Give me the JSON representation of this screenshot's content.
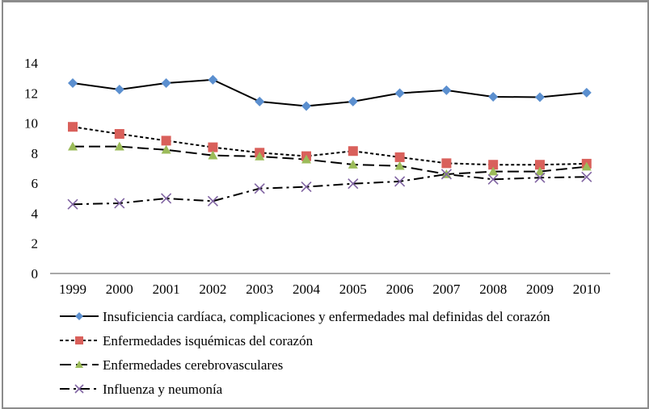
{
  "chart_data": {
    "type": "line",
    "title": "",
    "xlabel": "",
    "ylabel": "",
    "ylim": [
      0,
      14
    ],
    "yticks": [
      "0",
      "2",
      "4",
      "6",
      "8",
      "10",
      "12",
      "14"
    ],
    "grid": false,
    "legend_position": "bottom",
    "x": [
      "1999",
      "2000",
      "2001",
      "2002",
      "2003",
      "2004",
      "2005",
      "2006",
      "2007",
      "2008",
      "2009",
      "2010"
    ],
    "series": [
      {
        "name": "Insuficiencia cardíaca, complicaciones y enfermedades mal definidas del corazón",
        "color": "#5b8fcf",
        "marker": "diamond",
        "line_style": "solid",
        "values": [
          12.66,
          12.23,
          12.66,
          12.88,
          11.43,
          11.13,
          11.43,
          11.99,
          12.18,
          11.75,
          11.72,
          12.02
        ]
      },
      {
        "name": "Enfermedades isquémicas del corazón",
        "color": "#d9605b",
        "marker": "square",
        "line_style": "short-dash",
        "values": [
          9.75,
          9.28,
          8.83,
          8.39,
          8.03,
          7.8,
          8.14,
          7.73,
          7.33,
          7.23,
          7.23,
          7.3
        ]
      },
      {
        "name": "Enfermedades cerebrovasculares",
        "color": "#9bbb59",
        "marker": "triangle",
        "line_style": "long-dash",
        "values": [
          8.44,
          8.44,
          8.22,
          7.85,
          7.78,
          7.58,
          7.24,
          7.15,
          6.6,
          6.78,
          6.78,
          7.1
        ]
      },
      {
        "name": "Influenza y neumonía",
        "color": "#8064a2",
        "marker": "x",
        "line_style": "dash-dot",
        "values": [
          4.6,
          4.67,
          4.99,
          4.81,
          5.65,
          5.76,
          5.97,
          6.12,
          6.6,
          6.26,
          6.37,
          6.42
        ]
      }
    ]
  }
}
